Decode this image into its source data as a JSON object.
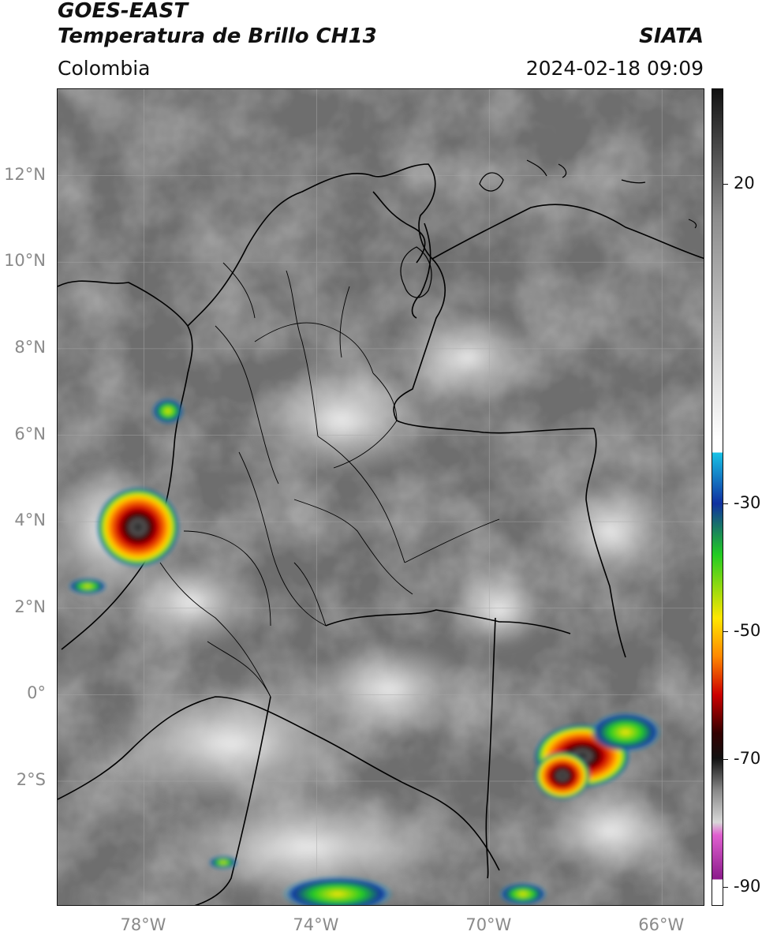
{
  "header": {
    "title_line1": "GOES-EAST",
    "title_line2": "Temperatura de Brillo CH13",
    "source": "SIATA",
    "region": "Colombia",
    "datetime": "2024-02-18 09:09"
  },
  "map": {
    "lon_range": [
      -80,
      -65
    ],
    "lat_range": [
      -4.9,
      14
    ],
    "lat_ticks": [
      {
        "value": 12,
        "label": "12°N"
      },
      {
        "value": 10,
        "label": "10°N"
      },
      {
        "value": 8,
        "label": "8°N"
      },
      {
        "value": 6,
        "label": "6°N"
      },
      {
        "value": 4,
        "label": "4°N"
      },
      {
        "value": 2,
        "label": "2°N"
      },
      {
        "value": 0,
        "label": "0°"
      },
      {
        "value": -2,
        "label": "2°S"
      }
    ],
    "lon_ticks": [
      {
        "value": -78,
        "label": "78°W"
      },
      {
        "value": -74,
        "label": "74°W"
      },
      {
        "value": -70,
        "label": "70°W"
      },
      {
        "value": -66,
        "label": "66°W"
      }
    ],
    "gridlines": true,
    "storm_cells": [
      {
        "lon": -78.1,
        "lat": 3.9,
        "min_temp_c": -75
      },
      {
        "lon": -67.7,
        "lat": -1.5,
        "min_temp_c": -75
      },
      {
        "lon": -77.3,
        "lat": 6.6,
        "min_temp_c": -45
      }
    ]
  },
  "colorbar": {
    "ticks": [
      {
        "value": 20,
        "label": "20"
      },
      {
        "value": -30,
        "label": "-30"
      },
      {
        "value": -50,
        "label": "-50"
      },
      {
        "value": -70,
        "label": "-70"
      },
      {
        "value": -90,
        "label": "-90"
      }
    ],
    "colors": {
      "warm_top": "#111111",
      "mid_gray": "#8c8c8c",
      "cold_white": "#ffffff",
      "cyan": "#19c3e6",
      "blue": "#1030a0",
      "green": "#22cc22",
      "yellow": "#ffe600",
      "orange": "#ff8800",
      "red": "#cc0000",
      "magenta": "#e060d0",
      "purple": "#8a1a8a"
    }
  }
}
